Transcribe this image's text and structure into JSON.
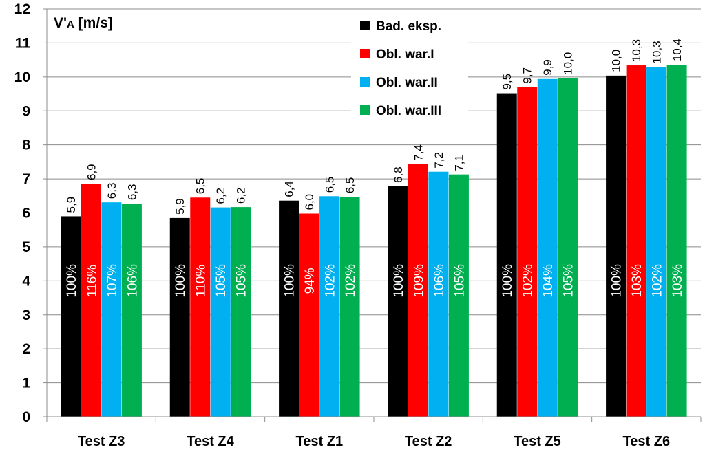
{
  "chart_data": {
    "type": "bar",
    "ylabel": "V'A [m/s]",
    "ylabel_parts": {
      "main": "V'",
      "sub": "A",
      "unit": " [m/s]"
    },
    "ylim": [
      0,
      12
    ],
    "yticks": [
      0,
      1,
      2,
      3,
      4,
      5,
      6,
      7,
      8,
      9,
      10,
      11,
      12
    ],
    "grid": true,
    "legend_position": "top-center",
    "categories": [
      "Test Z3",
      "Test Z4",
      "Test Z1",
      "Test Z2",
      "Test Z5",
      "Test Z6"
    ],
    "series": [
      {
        "name": "Bad. eksp.",
        "color": "#000000",
        "values": [
          5.9,
          5.85,
          6.36,
          6.78,
          9.52,
          10.04
        ],
        "value_labels": [
          "5,9",
          "5,9",
          "6,4",
          "6,8",
          "9,5",
          "10,0"
        ],
        "percent_labels": [
          "100%",
          "100%",
          "100%",
          "100%",
          "100%",
          "100%"
        ]
      },
      {
        "name": "Obl. war.I",
        "color": "#ff0000",
        "values": [
          6.86,
          6.45,
          5.98,
          7.43,
          9.7,
          10.34
        ],
        "value_labels": [
          "6,9",
          "6,5",
          "6,0",
          "7,4",
          "9,7",
          "10,3"
        ],
        "percent_labels": [
          "116%",
          "110%",
          "94%",
          "109%",
          "102%",
          "103%"
        ]
      },
      {
        "name": "Obl. war.II",
        "color": "#00b0f0",
        "values": [
          6.31,
          6.16,
          6.49,
          7.21,
          9.94,
          10.29
        ],
        "value_labels": [
          "6,3",
          "6,2",
          "6,5",
          "7,2",
          "9,9",
          "10,3"
        ],
        "percent_labels": [
          "107%",
          "105%",
          "102%",
          "106%",
          "104%",
          "102%"
        ]
      },
      {
        "name": "Obl. war.III",
        "color": "#00b050",
        "values": [
          6.27,
          6.17,
          6.47,
          7.13,
          9.96,
          10.36
        ],
        "value_labels": [
          "6,3",
          "6,2",
          "6,5",
          "7,1",
          "10,0",
          "10,4"
        ],
        "percent_labels": [
          "106%",
          "105%",
          "102%",
          "105%",
          "105%",
          "103%"
        ]
      }
    ]
  }
}
